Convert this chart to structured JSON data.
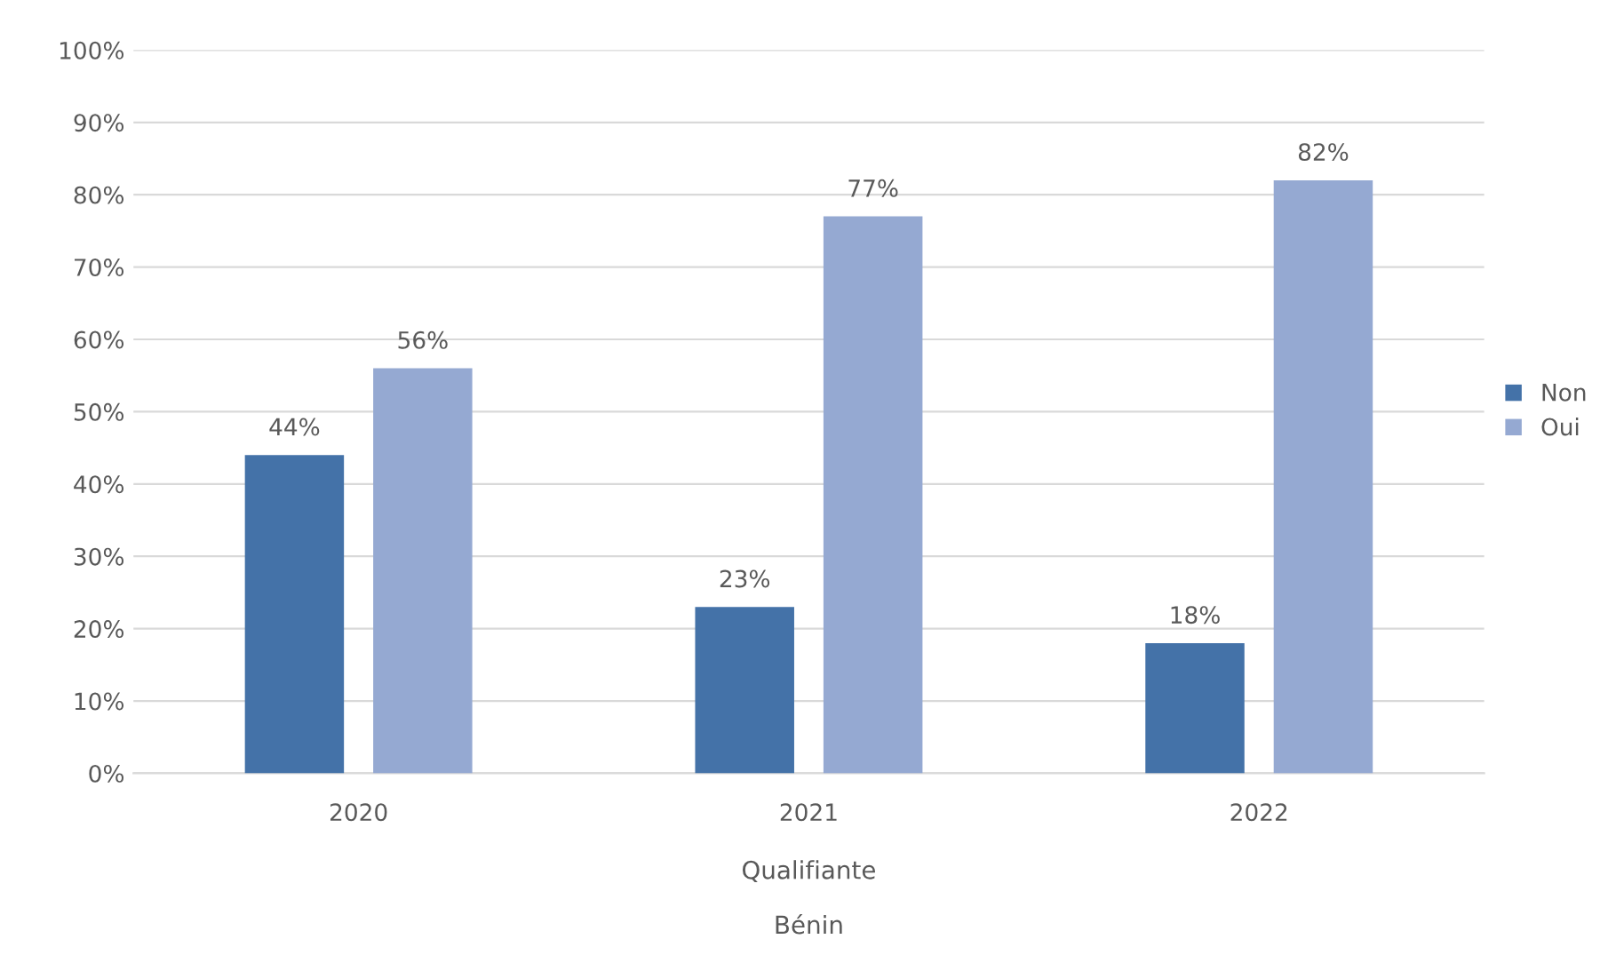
{
  "chart_data": {
    "type": "bar",
    "xlabel": "Qualifiante",
    "annotations": [
      "Bénin"
    ],
    "categories": [
      "2020",
      "2021",
      "2022"
    ],
    "series": [
      {
        "name": "Non",
        "color": "#4472a8",
        "values": [
          44,
          23,
          18
        ],
        "value_labels": [
          "44%",
          "23%",
          "18%"
        ]
      },
      {
        "name": "Oui",
        "color": "#95a9d2",
        "values": [
          56,
          77,
          82
        ],
        "value_labels": [
          "56%",
          "77%",
          "82%"
        ]
      }
    ],
    "ylim": [
      0,
      100
    ],
    "yticks": [
      {
        "value": 0,
        "label": "0%"
      },
      {
        "value": 10,
        "label": "10%"
      },
      {
        "value": 20,
        "label": "20%"
      },
      {
        "value": 30,
        "label": "30%"
      },
      {
        "value": 40,
        "label": "40%"
      },
      {
        "value": 50,
        "label": "50%"
      },
      {
        "value": 60,
        "label": "60%"
      },
      {
        "value": 70,
        "label": "70%"
      },
      {
        "value": 80,
        "label": "80%"
      },
      {
        "value": 90,
        "label": "90%"
      },
      {
        "value": 100,
        "label": "100%"
      }
    ],
    "grid": "y",
    "legend": "right"
  }
}
